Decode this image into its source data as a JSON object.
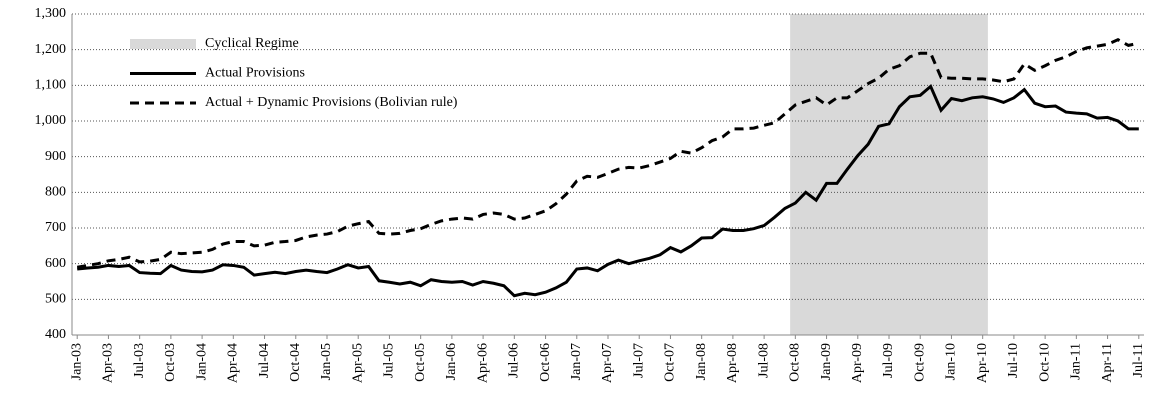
{
  "chart_data": {
    "type": "line",
    "categories": [
      "Jan-03",
      null,
      null,
      "Apr-03",
      null,
      null,
      "Jul-03",
      null,
      null,
      "Oct-03",
      null,
      null,
      "Jan-04",
      null,
      null,
      "Apr-04",
      null,
      null,
      "Jul-04",
      null,
      null,
      "Oct-04",
      null,
      null,
      "Jan-05",
      null,
      null,
      "Apr-05",
      null,
      null,
      "Jul-05",
      null,
      null,
      "Oct-05",
      null,
      null,
      "Jan-06",
      null,
      null,
      "Apr-06",
      null,
      null,
      "Jul-06",
      null,
      null,
      "Oct-06",
      null,
      null,
      "Jan-07",
      null,
      null,
      "Apr-07",
      null,
      null,
      "Jul-07",
      null,
      null,
      "Oct-07",
      null,
      null,
      "Jan-08",
      null,
      null,
      "Apr-08",
      null,
      null,
      "Jul-08",
      null,
      null,
      "Oct-08",
      null,
      null,
      "Jan-09",
      null,
      null,
      "Apr-09",
      null,
      null,
      "Jul-09",
      null,
      null,
      "Oct-09",
      null,
      null,
      "Jan-10",
      null,
      null,
      "Apr-10",
      null,
      null,
      "Jul-10",
      null,
      null,
      "Oct-10",
      null,
      null,
      "Jan-11",
      null,
      null,
      "Apr-11",
      null,
      null,
      "Jul-11"
    ],
    "shaded_regions": [
      {
        "name": "Cyclical Regime",
        "color": "#d9d9d9",
        "start": "Oct-08",
        "end": "Apr-10"
      }
    ],
    "series": [
      {
        "name": "Actual Provisions",
        "color": "#000000",
        "line_style": "solid",
        "values": [
          585,
          588,
          590,
          595,
          592,
          595,
          575,
          573,
          572,
          595,
          582,
          578,
          577,
          582,
          597,
          595,
          590,
          568,
          572,
          576,
          572,
          578,
          582,
          578,
          575,
          585,
          597,
          588,
          592,
          552,
          548,
          543,
          548,
          538,
          555,
          550,
          548,
          550,
          540,
          550,
          545,
          538,
          510,
          517,
          513,
          520,
          532,
          548,
          585,
          588,
          580,
          598,
          610,
          600,
          608,
          615,
          625,
          645,
          633,
          650,
          672,
          673,
          697,
          693,
          693,
          698,
          707,
          730,
          755,
          770,
          800,
          778,
          825,
          825,
          865,
          903,
          935,
          985,
          992,
          1040,
          1068,
          1072,
          1097,
          1030,
          1063,
          1057,
          1065,
          1068,
          1062,
          1052,
          1065,
          1088,
          1050,
          1040,
          1042,
          1025,
          1022,
          1020,
          1008,
          1010,
          1000,
          978,
          978
        ]
      },
      {
        "name": "Actual + Dynamic Provisions (Bolivian rule)",
        "color": "#000000",
        "line_style": "dashed",
        "values": [
          590,
          595,
          600,
          608,
          612,
          618,
          605,
          607,
          612,
          632,
          628,
          630,
          632,
          640,
          655,
          662,
          662,
          650,
          652,
          660,
          662,
          665,
          675,
          680,
          683,
          690,
          705,
          712,
          718,
          685,
          683,
          685,
          693,
          698,
          710,
          720,
          725,
          728,
          725,
          738,
          742,
          738,
          725,
          728,
          738,
          748,
          768,
          795,
          832,
          845,
          842,
          853,
          865,
          870,
          868,
          875,
          885,
          895,
          915,
          910,
          925,
          945,
          955,
          978,
          978,
          980,
          988,
          995,
          1020,
          1045,
          1055,
          1065,
          1045,
          1065,
          1065,
          1085,
          1105,
          1120,
          1145,
          1155,
          1180,
          1190,
          1190,
          1122,
          1120,
          1120,
          1118,
          1118,
          1115,
          1110,
          1118,
          1160,
          1142,
          1155,
          1170,
          1180,
          1195,
          1205,
          1210,
          1215,
          1228,
          1212,
          1218
        ]
      }
    ],
    "ylim": [
      400,
      1300
    ],
    "yticks": [
      400,
      500,
      600,
      700,
      800,
      900,
      {
        "value": 1000,
        "label": "1,000"
      },
      {
        "value": 1100,
        "label": "1,100"
      },
      {
        "value": 1200,
        "label": "1,200"
      },
      {
        "value": 1300,
        "label": "1,300"
      }
    ],
    "grid": true
  }
}
